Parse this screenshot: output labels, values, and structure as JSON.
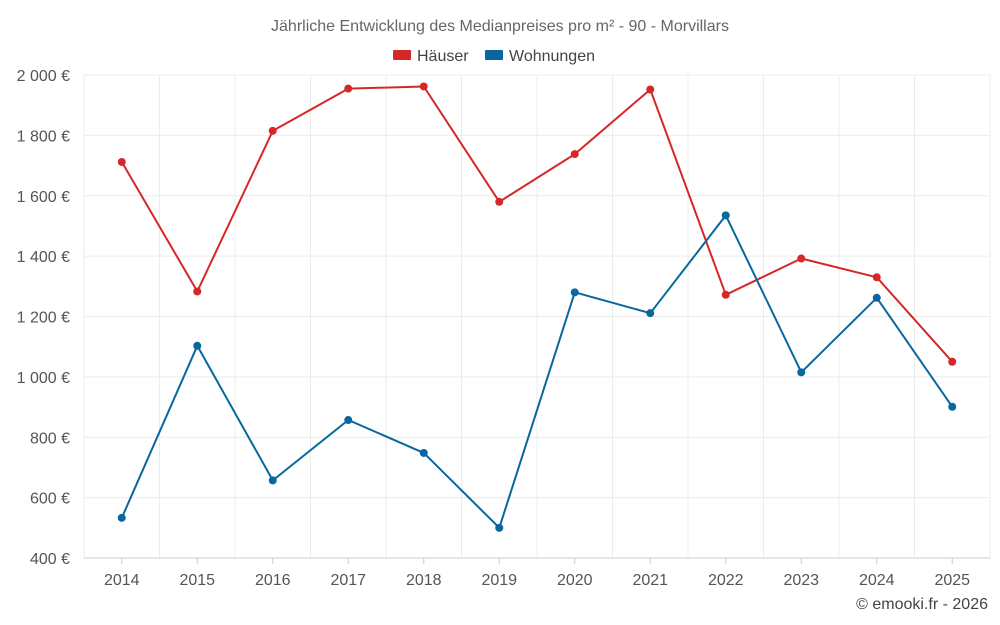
{
  "chart_data": {
    "type": "line",
    "title": "Jährliche Entwicklung des Medianpreises pro m² - 90 - Morvillars",
    "categories": [
      "2014",
      "2015",
      "2016",
      "2017",
      "2018",
      "2019",
      "2020",
      "2021",
      "2022",
      "2023",
      "2024",
      "2025"
    ],
    "series": [
      {
        "name": "Häuser",
        "color": "#d62728",
        "values": [
          1712,
          1283,
          1815,
          1955,
          1962,
          1580,
          1738,
          1952,
          1272,
          1392,
          1330,
          1050
        ]
      },
      {
        "name": "Wohnungen",
        "color": "#08679e",
        "values": [
          533,
          1103,
          657,
          857,
          748,
          500,
          1280,
          1211,
          1535,
          1015,
          1262,
          901
        ]
      }
    ],
    "ylim": [
      400,
      2000
    ],
    "yticks": [
      400,
      600,
      800,
      1000,
      1200,
      1400,
      1600,
      1800,
      2000
    ],
    "ytick_labels": [
      "400 €",
      "600 €",
      "800 €",
      "1 000 €",
      "1 200 €",
      "1 400 €",
      "1 600 €",
      "1 800 €",
      "2 000 €"
    ],
    "xlabel": "",
    "ylabel": "",
    "grid": true,
    "legend_position": "top-center"
  },
  "credit": "© emooki.fr - 2026"
}
